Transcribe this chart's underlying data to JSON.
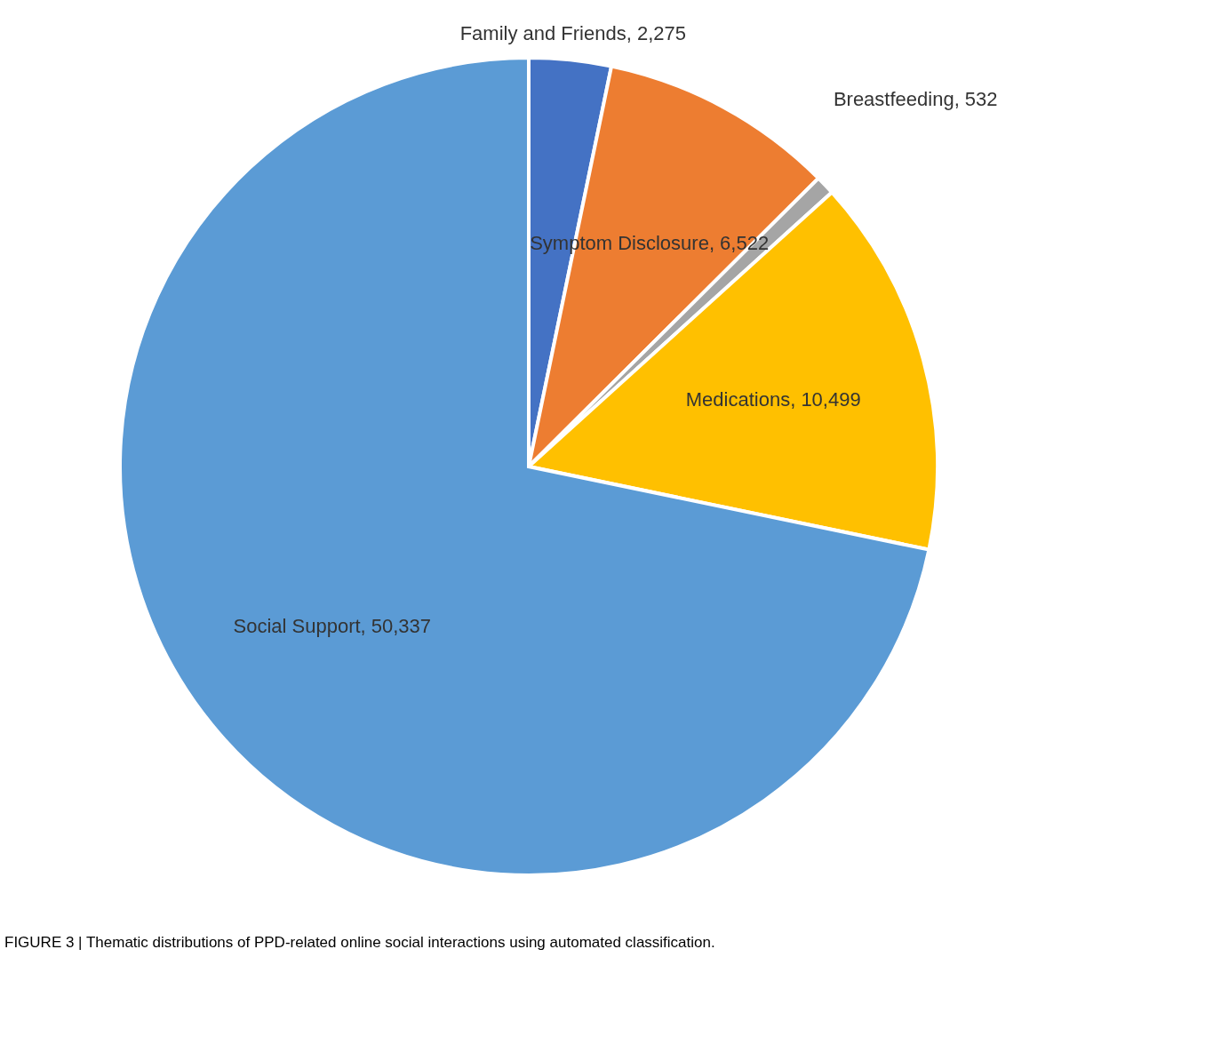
{
  "chart_data": {
    "type": "pie",
    "categories": [
      "Family and Friends",
      "Symptom Disclosure",
      "Breastfeeding",
      "Medications",
      "Social Support"
    ],
    "values": [
      2275,
      6522,
      532,
      10499,
      50337
    ],
    "value_labels": [
      "2,275",
      "6,522",
      "532",
      "10,499",
      "50,337"
    ],
    "colors": [
      "#4472c4",
      "#ed7d31",
      "#a5a5a5",
      "#ffc000",
      "#5b9bd5"
    ],
    "legend": false,
    "annotations": [
      "FIGURE 3 | Thematic distributions of PPD-related online social interactions using automated classification."
    ]
  }
}
